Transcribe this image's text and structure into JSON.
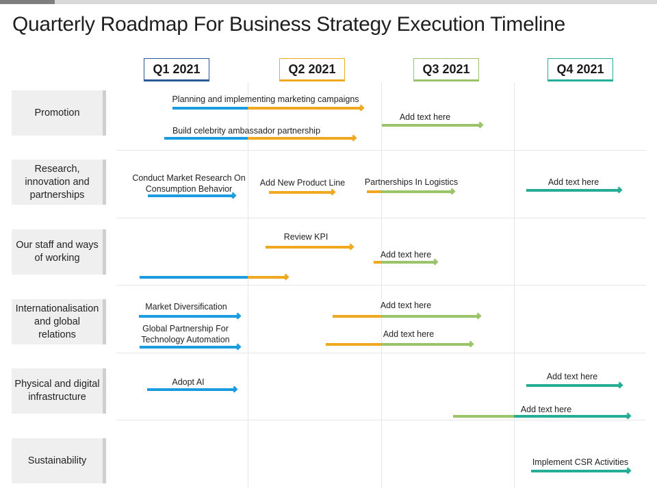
{
  "title": "Quarterly Roadmap For Business Strategy Execution Timeline",
  "colors": {
    "q1": "#1b9be0",
    "q2": "#f0a820",
    "q3": "#9bc46a",
    "q4": "#26ad97",
    "q1_box_border": "#1f4e9a"
  },
  "quarters": [
    "Q1 2021",
    "Q2 2021",
    "Q3 2021",
    "Q4 2021"
  ],
  "categories": [
    "Promotion",
    "Research, innovation and partnerships",
    "Our staff and ways of working",
    "Internationalisation and global relations",
    "Physical and digital infrastructure",
    "Sustainability"
  ],
  "tasks": [
    {
      "label": "Planning and implementing marketing campaigns"
    },
    {
      "label": "Add text here"
    },
    {
      "label": "Build celebrity ambassador partnership"
    },
    {
      "label": "Conduct Market Research On Consumption Behavior"
    },
    {
      "label": "Add New Product Line"
    },
    {
      "label": "Partnerships In Logistics"
    },
    {
      "label": "Add text here"
    },
    {
      "label": "Review KPI"
    },
    {
      "label": "Add text here"
    },
    {
      "label": ""
    },
    {
      "label": "Market Diversification"
    },
    {
      "label": "Add text here"
    },
    {
      "label": "Global Partnership For Technology Automation"
    },
    {
      "label": "Add text here"
    },
    {
      "label": "Adopt AI"
    },
    {
      "label": "Add text here"
    },
    {
      "label": "Add text here"
    },
    {
      "label": "Implement CSR Activities"
    }
  ]
}
